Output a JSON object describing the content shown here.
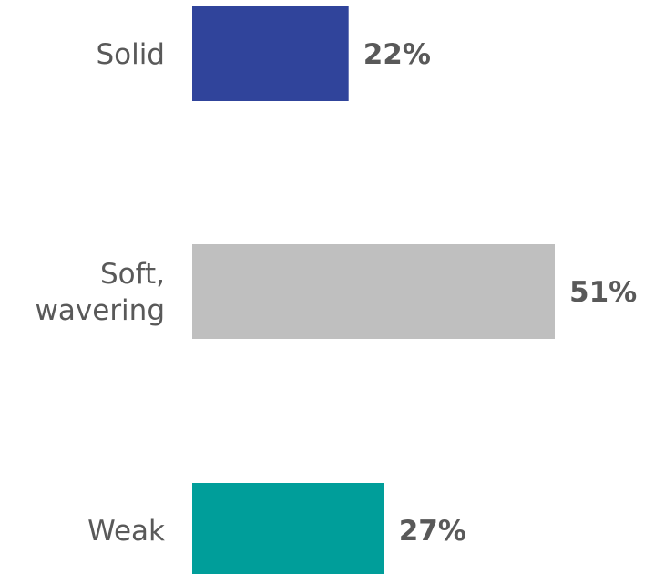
{
  "chart_data": {
    "type": "bar",
    "orientation": "horizontal",
    "categories": [
      "Solid",
      "Soft, wavering",
      "Weak"
    ],
    "category_lines": [
      [
        "Solid"
      ],
      [
        "Soft,",
        "wavering"
      ],
      [
        "Weak"
      ]
    ],
    "values": [
      22,
      51,
      27
    ],
    "value_labels": [
      "22%",
      "51%",
      "27%"
    ],
    "colors": [
      "#30449B",
      "#BFBFBF",
      "#009E9A"
    ],
    "value_unit": "%",
    "xlim": [
      0,
      51
    ],
    "title": "",
    "xlabel": "",
    "ylabel": "",
    "grid": false,
    "legend": "none"
  }
}
